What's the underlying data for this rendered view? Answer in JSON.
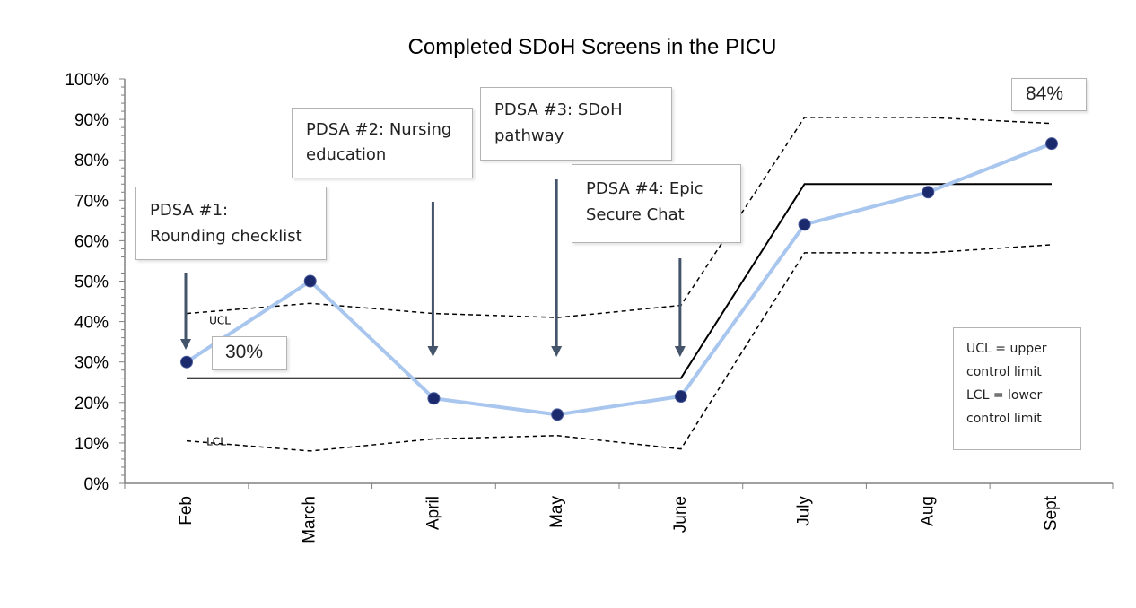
{
  "chart_data": {
    "type": "line",
    "title": "Completed SDoH Screens in the PICU",
    "categories": [
      "Feb",
      "March",
      "April",
      "May",
      "June",
      "July",
      "Aug",
      "Sept"
    ],
    "ylim": [
      0,
      100
    ],
    "yticks": [
      "0%",
      "10%",
      "20%",
      "30%",
      "40%",
      "50%",
      "60%",
      "70%",
      "80%",
      "90%",
      "100%"
    ],
    "series": [
      {
        "name": "",
        "values": [
          30,
          50,
          21,
          17,
          21.5,
          64,
          72,
          84
        ],
        "color": "#a8c6ee",
        "marker_color": "#1a2a6c"
      }
    ],
    "center_line": [
      26,
      26,
      26,
      26,
      26,
      74,
      74,
      74
    ],
    "ucl": [
      42,
      44.5,
      42,
      41,
      44,
      90.5,
      90.5,
      89
    ],
    "lcl": [
      10.5,
      8,
      11,
      11.8,
      8.5,
      57,
      57,
      59
    ],
    "line_labels": {
      "ucl": "UCL",
      "lcl": "LCL"
    },
    "data_labels": [
      {
        "category": "Feb",
        "text": "30%"
      },
      {
        "category": "Sept",
        "text": "84%"
      }
    ],
    "annotations": [
      {
        "text": "PDSA #1:\nRounding checklist",
        "arrow_category": "Feb"
      },
      {
        "text": "PDSA #2: Nursing\neducation",
        "arrow_category": "April"
      },
      {
        "text": "PDSA #3: SDoH\npathway",
        "arrow_category": "May"
      },
      {
        "text": "PDSA #4: Epic\nSecure Chat",
        "arrow_category": "June"
      }
    ],
    "legend_note": "UCL = upper\ncontrol limit\nLCL = lower\ncontrol limit",
    "grid": false,
    "arrow_color": "#44546a"
  }
}
